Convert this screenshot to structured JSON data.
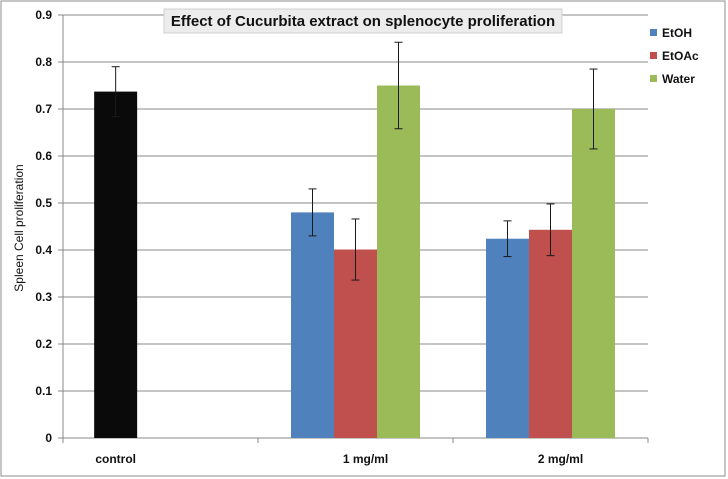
{
  "chart_data": {
    "type": "bar",
    "title": "Effect of Cucurbita extract on splenocyte proliferation",
    "xlabel": "",
    "ylabel": "Spleen Cell proliferation",
    "ylim": [
      0,
      0.9
    ],
    "yticks": [
      "0",
      "0.1",
      "0.2",
      "0.3",
      "0.4",
      "0.5",
      "0.6",
      "0.7",
      "0.8",
      "0.9"
    ],
    "grid": true,
    "legend_position": "top-right",
    "categories": [
      "control",
      "1 mg/ml",
      "2 mg/ml"
    ],
    "control": {
      "category": "control",
      "value": 0.737,
      "error": 0.053,
      "color": "#0a0a0a"
    },
    "series": [
      {
        "name": "EtOH",
        "color": "#4f81bd",
        "values": [
          null,
          0.48,
          0.424
        ],
        "errors": [
          null,
          0.05,
          0.038
        ]
      },
      {
        "name": "EtOAc",
        "color": "#c0504d",
        "values": [
          null,
          0.401,
          0.443
        ],
        "errors": [
          null,
          0.065,
          0.055
        ]
      },
      {
        "name": "Water",
        "color": "#9bbb59",
        "values": [
          null,
          0.75,
          0.7
        ],
        "errors": [
          null,
          0.092,
          0.085
        ]
      }
    ]
  }
}
